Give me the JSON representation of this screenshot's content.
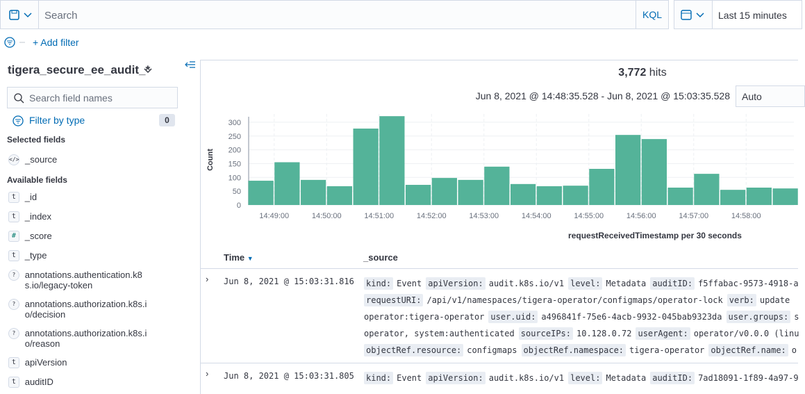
{
  "toolbar": {
    "search_placeholder": "Search",
    "language": "KQL",
    "time_range": "Last 15 minutes"
  },
  "filters": {
    "add_filter": "+ Add filter"
  },
  "sidebar": {
    "index_pattern": "tigera_secure_ee_audit_*",
    "field_search_placeholder": "Search field names",
    "filter_by_type": "Filter by type",
    "filter_count": 0,
    "selected_fields_heading": "Selected fields",
    "selected_fields": [
      {
        "icon": "</>",
        "name": "_source"
      }
    ],
    "available_fields_heading": "Available fields",
    "available_fields": [
      {
        "icon": "t",
        "name": "_id"
      },
      {
        "icon": "t",
        "name": "_index"
      },
      {
        "icon": "#",
        "name": "_score"
      },
      {
        "icon": "t",
        "name": "_type"
      },
      {
        "icon": "?",
        "name": "annotations.authentication.k8s.io/legacy-token"
      },
      {
        "icon": "?",
        "name": "annotations.authorization.k8s.io/decision"
      },
      {
        "icon": "?",
        "name": "annotations.authorization.k8s.io/reason"
      },
      {
        "icon": "t",
        "name": "apiVersion"
      },
      {
        "icon": "t",
        "name": "auditID"
      }
    ]
  },
  "results": {
    "hits_count": "3,772",
    "hits_label": "hits",
    "time_range": "Jun 8, 2021 @ 14:48:35.528 - Jun 8, 2021 @ 15:03:35.528",
    "interval": "Auto"
  },
  "chart_data": {
    "type": "bar",
    "y_label": "Count",
    "x_label": "requestReceivedTimestamp per 30 seconds",
    "color": "#54b399",
    "categories": [
      null,
      null,
      null,
      null,
      null,
      null,
      null,
      null,
      null,
      null,
      null,
      null,
      null,
      null,
      null,
      null,
      null,
      null,
      null,
      null,
      null
    ],
    "values": [
      88,
      155,
      91,
      68,
      277,
      322,
      73,
      98,
      91,
      139,
      76,
      68,
      70,
      131,
      254,
      239,
      63,
      113,
      55,
      63,
      60
    ],
    "ylim": [
      0,
      330
    ],
    "yticks": [
      0,
      50,
      100,
      150,
      200,
      250,
      300
    ],
    "grid": true,
    "xtick_labels": [
      "14:49:00",
      "14:50:00",
      "14:51:00",
      "14:52:00",
      "14:53:00",
      "14:54:00",
      "14:55:00",
      "14:56:00",
      "14:57:00",
      "14:58:00"
    ]
  },
  "table": {
    "columns": [
      "Time",
      "_source"
    ],
    "rows": [
      {
        "time": "Jun 8, 2021 @ 15:03:31.816",
        "lines": [
          [
            [
              "kind:",
              "Event"
            ],
            [
              "apiVersion:",
              "audit.k8s.io/v1"
            ],
            [
              "level:",
              "Metadata"
            ],
            [
              "auditID:",
              "f5ffabac-9573-4918-a"
            ]
          ],
          [
            [
              "requestURI:",
              "/api/v1/namespaces/tigera-operator/configmaps/operator-lock"
            ],
            [
              "verb:",
              "update"
            ]
          ],
          [
            [
              null,
              "operator:tigera-operator"
            ],
            [
              "user.uid:",
              "a496841f-75e6-4acb-9932-045bab9323da"
            ],
            [
              "user.groups:",
              "s"
            ]
          ],
          [
            [
              null,
              "operator, system:authenticated"
            ],
            [
              "sourceIPs:",
              "10.128.0.72"
            ],
            [
              "userAgent:",
              "operator/v0.0.0 (linu"
            ]
          ],
          [
            [
              "objectRef.resource:",
              "configmaps"
            ],
            [
              "objectRef.namespace:",
              "tigera-operator"
            ],
            [
              "objectRef.name:",
              "o"
            ]
          ]
        ]
      },
      {
        "time": "Jun 8, 2021 @ 15:03:31.805",
        "lines": [
          [
            [
              "kind:",
              "Event"
            ],
            [
              "apiVersion:",
              "audit.k8s.io/v1"
            ],
            [
              "level:",
              "Metadata"
            ],
            [
              "auditID:",
              "7ad18091-1f89-4a97-9"
            ]
          ]
        ]
      }
    ]
  }
}
